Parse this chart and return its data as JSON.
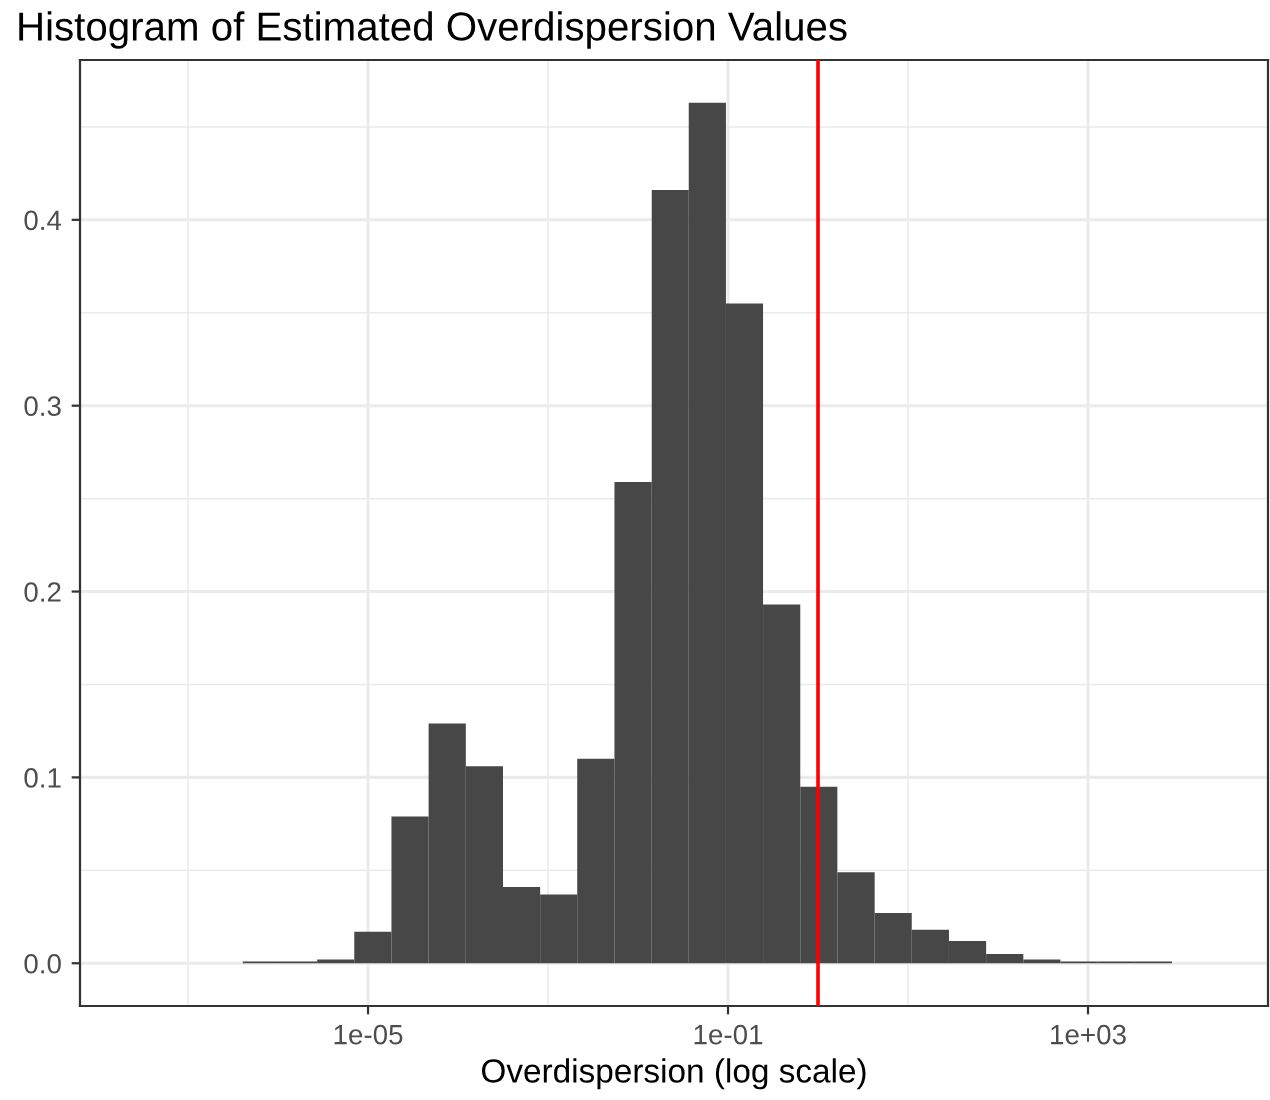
{
  "chart_data": {
    "type": "histogram",
    "title": "Histogram of Estimated Overdispersion Values",
    "xlabel": "Overdispersion (log scale)",
    "bins": [
      4.06e-07,
      1.05e-06,
      2.72e-06,
      7.03e-06,
      1.82e-05,
      4.71e-05,
      0.000122,
      0.000316,
      0.000817,
      0.00211,
      0.00547,
      0.0142,
      0.0366,
      0.0948,
      0.245,
      0.635,
      1.64,
      4.26,
      11.0,
      28.5,
      73.8,
      191,
      494,
      1280,
      3310,
      8570
    ],
    "values": [
      0.001,
      0.001,
      0.002,
      0.017,
      0.079,
      0.129,
      0.106,
      0.041,
      0.037,
      0.11,
      0.259,
      0.416,
      0.463,
      0.355,
      0.193,
      0.095,
      0.049,
      0.027,
      0.018,
      0.012,
      0.005,
      0.002,
      0.001,
      0.001,
      0.001
    ],
    "color": "#474747",
    "log": "x",
    "xlim": [
      6.3e-09,
      100000.0
    ],
    "ylim": [
      -0.023,
      0.486
    ],
    "xticks": [
      {
        "value": 1e-07,
        "label": null
      },
      {
        "value": 1e-05,
        "label": "1e-05"
      },
      {
        "value": 0.001,
        "label": null
      },
      {
        "value": 0.1,
        "label": "1e-01"
      },
      {
        "value": 10,
        "label": null
      },
      {
        "value": 1000,
        "label": "1e+03"
      }
    ],
    "yticks": [
      {
        "value": 0,
        "label": "0.0"
      },
      {
        "value": 0.05,
        "label": null
      },
      {
        "value": 0.1,
        "label": "0.1"
      },
      {
        "value": 0.15,
        "label": null
      },
      {
        "value": 0.2,
        "label": "0.2"
      },
      {
        "value": 0.25,
        "label": null
      },
      {
        "value": 0.3,
        "label": "0.3"
      },
      {
        "value": 0.35,
        "label": null
      },
      {
        "value": 0.4,
        "label": "0.4"
      },
      {
        "value": 0.45,
        "label": null
      }
    ],
    "grid": true,
    "ref_lines": [
      {
        "axis": "x",
        "value": 1,
        "color": "#ff0000",
        "line_style": "solid"
      }
    ]
  }
}
